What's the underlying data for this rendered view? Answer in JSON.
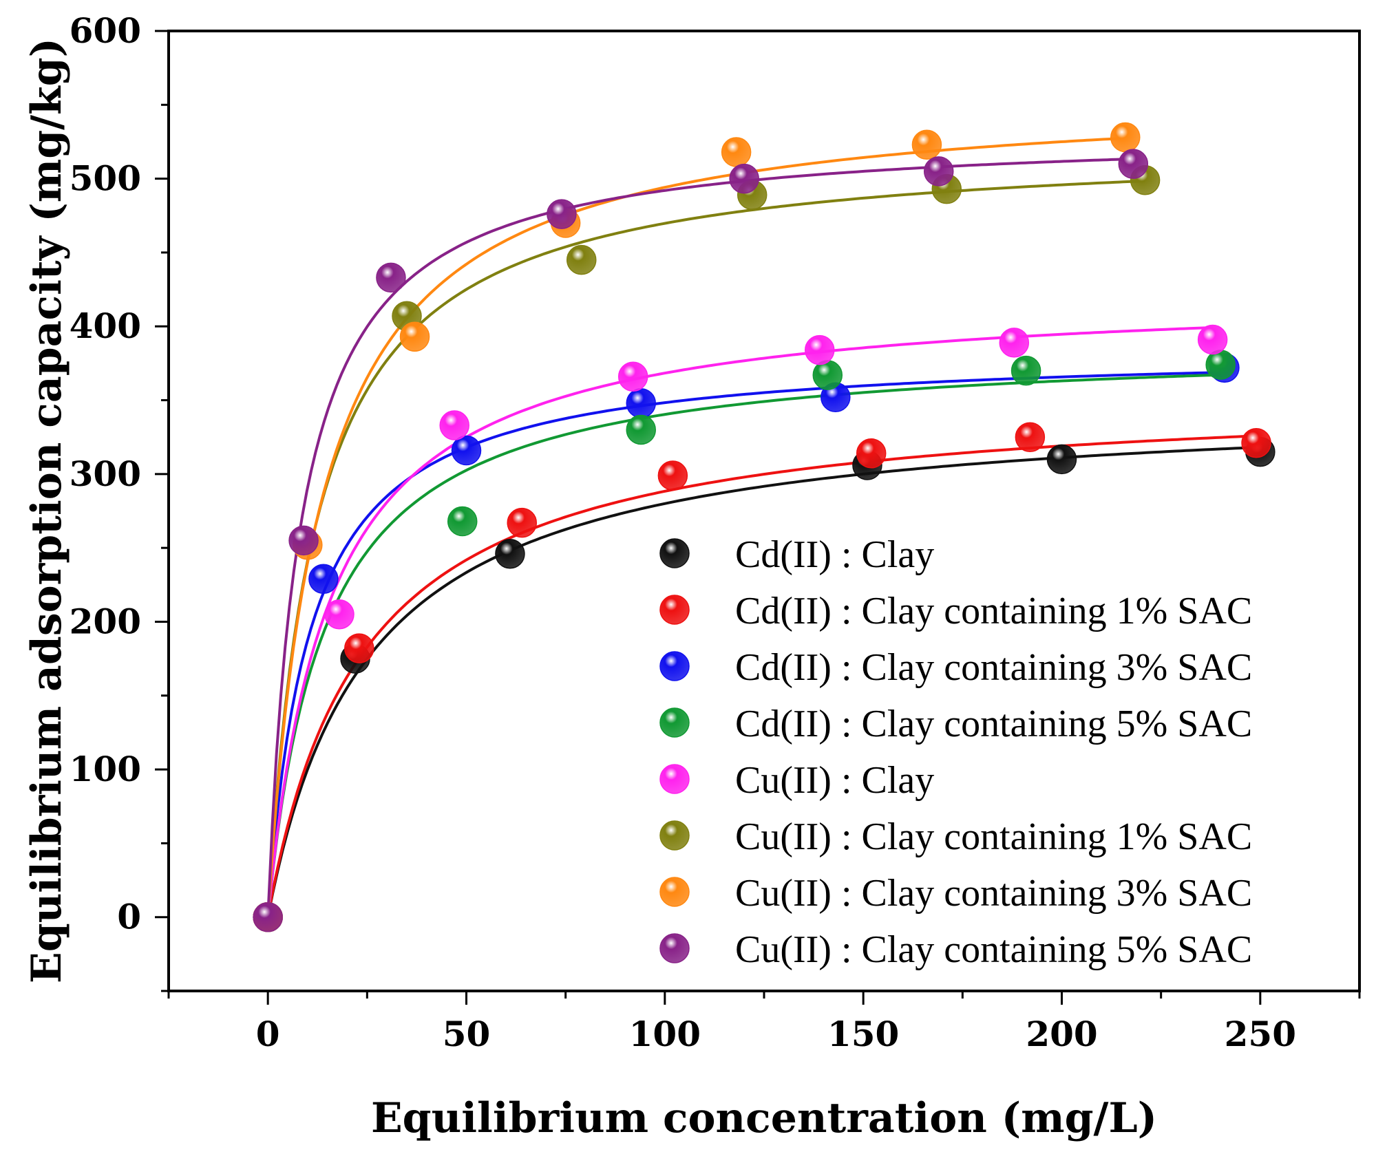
{
  "chart_data": {
    "type": "scatter",
    "xlabel": "Equilibrium concentration (mg/L)",
    "ylabel": "Equilibrium adsorption capacity (mg/kg)",
    "xlim": [
      -25,
      275
    ],
    "ylim": [
      -50,
      600
    ],
    "xticks": [
      0,
      50,
      100,
      150,
      200,
      250
    ],
    "yticks": [
      0,
      100,
      200,
      300,
      400,
      500,
      600
    ],
    "grid": false,
    "legend_position": "bottom-right",
    "series": [
      {
        "name": "Cd(II) : Clay",
        "color": "#111111",
        "x": [
          0,
          22,
          61,
          151,
          200,
          250
        ],
        "y": [
          0,
          175,
          246,
          306,
          310,
          315
        ],
        "fit": {
          "qmax": 350,
          "k": 0.04
        }
      },
      {
        "name": "Cd(II) : Clay containing 1% SAC",
        "color": "#ee1111",
        "x": [
          0,
          23,
          64,
          102,
          152,
          192,
          249
        ],
        "y": [
          0,
          182,
          267,
          299,
          314,
          325,
          321
        ],
        "fit": {
          "qmax": 357,
          "k": 0.042
        }
      },
      {
        "name": "Cd(II) : Clay containing 3% SAC",
        "color": "#1111ee",
        "x": [
          0,
          14,
          50,
          94,
          143,
          241
        ],
        "y": [
          0,
          229,
          316,
          348,
          352,
          372
        ],
        "fit": {
          "qmax": 385,
          "k": 0.095
        }
      },
      {
        "name": "Cd(II) : Clay containing 5% SAC",
        "color": "#119933",
        "x": [
          0,
          49,
          94,
          141,
          191,
          240
        ],
        "y": [
          0,
          268,
          330,
          367,
          370,
          374
        ],
        "fit": {
          "qmax": 389,
          "k": 0.07
        }
      },
      {
        "name": "Cu(II) : Clay",
        "color": "#ff22ee",
        "x": [
          0,
          18,
          47,
          92,
          139,
          188,
          238
        ],
        "y": [
          0,
          205,
          333,
          366,
          384,
          389,
          391
        ],
        "fit": {
          "qmax": 425,
          "k": 0.065
        }
      },
      {
        "name": "Cu(II) : Clay containing 1% SAC",
        "color": "#808010",
        "x": [
          0,
          35,
          79,
          122,
          171,
          221
        ],
        "y": [
          0,
          407,
          445,
          489,
          493,
          499
        ],
        "fit": {
          "qmax": 525,
          "k": 0.085
        }
      },
      {
        "name": "Cu(II) : Clay containing 3% SAC",
        "color": "#ff8811",
        "x": [
          0,
          10,
          37,
          75,
          118,
          166,
          216
        ],
        "y": [
          0,
          252,
          393,
          470,
          518,
          523,
          528
        ],
        "fit": {
          "qmax": 560,
          "k": 0.075
        }
      },
      {
        "name": "Cu(II) : Clay containing 5% SAC",
        "color": "#882288",
        "x": [
          0,
          9,
          31,
          74,
          120,
          169,
          218
        ],
        "y": [
          0,
          255,
          433,
          476,
          500,
          505,
          510
        ],
        "fit": {
          "qmax": 533,
          "k": 0.12
        }
      }
    ]
  }
}
